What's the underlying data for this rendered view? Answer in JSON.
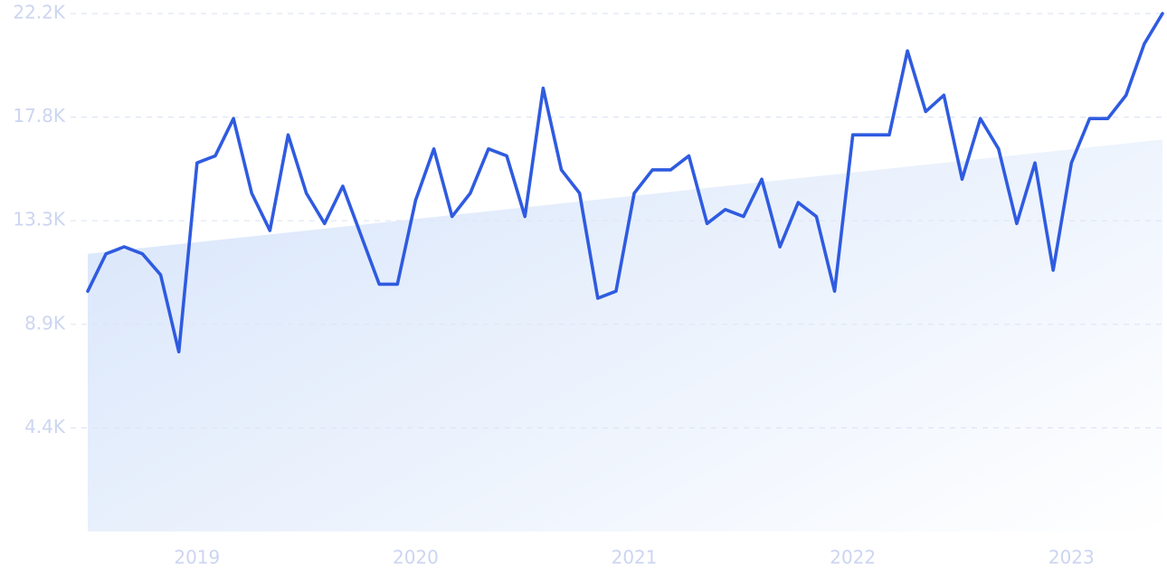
{
  "chart_data": {
    "type": "line",
    "categories": [
      null,
      null,
      null,
      null,
      null,
      null,
      "2019",
      null,
      null,
      null,
      null,
      null,
      null,
      null,
      null,
      null,
      null,
      null,
      "2020",
      null,
      null,
      null,
      null,
      null,
      null,
      null,
      null,
      null,
      null,
      null,
      "2021",
      null,
      null,
      null,
      null,
      null,
      null,
      null,
      null,
      null,
      null,
      null,
      "2022",
      null,
      null,
      null,
      null,
      null,
      null,
      null,
      null,
      null,
      null,
      null,
      "2023",
      null,
      null,
      null,
      null,
      null
    ],
    "series": [
      {
        "color": "#2f5be0",
        "values": [
          10300,
          11900,
          12200,
          11900,
          11000,
          7700,
          15800,
          16100,
          17700,
          14500,
          12900,
          17000,
          14500,
          13200,
          14800,
          12700,
          10600,
          10600,
          14200,
          16400,
          13500,
          14500,
          16400,
          16100,
          13500,
          19000,
          15500,
          14500,
          10000,
          10300,
          14500,
          15500,
          15500,
          16100,
          13200,
          13800,
          13500,
          15100,
          12200,
          14100,
          13500,
          10300,
          17000,
          17000,
          17000,
          20600,
          18000,
          18700,
          15100,
          17700,
          16400,
          13200,
          15800,
          11200,
          15800,
          17700,
          17700,
          18700,
          20900,
          22200
        ]
      }
    ],
    "trend": [
      11900,
      16800
    ],
    "ylim": [
      0,
      22200
    ],
    "yticks": [
      {
        "value": 4440,
        "label": "4.4K"
      },
      {
        "value": 8880,
        "label": "8.9K"
      },
      {
        "value": 13320,
        "label": "13.3K"
      },
      {
        "value": 17760,
        "label": "17.8K"
      },
      {
        "value": 22200,
        "label": "22.2K"
      }
    ],
    "grid": true
  }
}
